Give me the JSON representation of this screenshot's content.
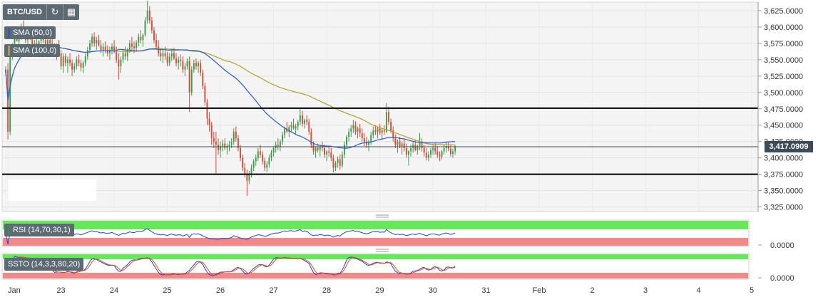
{
  "toolbar": {
    "symbol": "BTC/USD",
    "refresh_icon": "refresh-icon",
    "calendar_icon": "calendar-icon"
  },
  "indicators": {
    "sma50": {
      "label": "SMA (50,0)",
      "color": "#2a5cc9"
    },
    "sma100": {
      "label": "SMA (100,0)",
      "color": "#b0a02a"
    },
    "rsi": {
      "label": "RSI (14,70,30,1)",
      "value_label": "0.0000"
    },
    "ssto": {
      "label": "SSTO (14,3,3,80,20)",
      "value_label": "0.0000"
    }
  },
  "current_price": "3,417.0909",
  "colors": {
    "up": "#3e9b4b",
    "down": "#d64b3a",
    "panel_bg": "#f4f4f4",
    "green_zone": "#66e85a",
    "red_zone": "#f08a8a"
  },
  "chart_data": {
    "type": "candlestick",
    "yticks": [
      "3,625.0000",
      "3,600.0000",
      "3,575.0000",
      "3,550.0000",
      "3,525.0000",
      "3,500.0000",
      "3,475.0000",
      "3,450.0000",
      "3,425.0000",
      "3,400.0000",
      "3,375.0000",
      "3,350.0000",
      "3,325.0000"
    ],
    "ytick_values": [
      3625,
      3600,
      3575,
      3550,
      3525,
      3500,
      3475,
      3450,
      3425,
      3400,
      3375,
      3350,
      3325
    ],
    "ylim": [
      3318,
      3638
    ],
    "xticks": [
      "Jan",
      "23",
      "24",
      "25",
      "26",
      "27",
      "28",
      "29",
      "30",
      "31",
      "Feb",
      "2",
      "3",
      "4",
      "5"
    ],
    "horizontal_levels": [
      3476,
      3375
    ],
    "current_price_value": 3417.09,
    "candles_per_day": 24,
    "candles": [
      [
        3530,
        3540,
        3525,
        3535
      ],
      [
        3535,
        3545,
        3428,
        3440
      ],
      [
        3440,
        3560,
        3435,
        3555
      ],
      [
        3555,
        3575,
        3550,
        3570
      ],
      [
        3570,
        3590,
        3565,
        3585
      ],
      [
        3585,
        3600,
        3580,
        3578
      ],
      [
        3578,
        3590,
        3570,
        3585
      ],
      [
        3585,
        3605,
        3580,
        3600
      ],
      [
        3600,
        3610,
        3585,
        3590
      ],
      [
        3590,
        3600,
        3575,
        3580
      ],
      [
        3580,
        3595,
        3570,
        3590
      ],
      [
        3590,
        3600,
        3580,
        3585
      ],
      [
        3585,
        3590,
        3560,
        3565
      ],
      [
        3565,
        3580,
        3558,
        3575
      ],
      [
        3575,
        3585,
        3565,
        3570
      ],
      [
        3570,
        3580,
        3555,
        3578
      ],
      [
        3578,
        3595,
        3570,
        3590
      ],
      [
        3590,
        3600,
        3575,
        3580
      ],
      [
        3580,
        3588,
        3565,
        3570
      ],
      [
        3570,
        3585,
        3560,
        3580
      ],
      [
        3580,
        3592,
        3570,
        3575
      ],
      [
        3575,
        3582,
        3560,
        3565
      ],
      [
        3565,
        3575,
        3555,
        3560
      ],
      [
        3560,
        3575,
        3550,
        3570
      ],
      [
        3570,
        3580,
        3555,
        3560
      ],
      [
        3560,
        3565,
        3535,
        3540
      ],
      [
        3540,
        3560,
        3530,
        3555
      ],
      [
        3555,
        3560,
        3540,
        3545
      ],
      [
        3545,
        3555,
        3530,
        3550
      ],
      [
        3550,
        3560,
        3540,
        3545
      ],
      [
        3545,
        3550,
        3525,
        3535
      ],
      [
        3535,
        3545,
        3530,
        3540
      ],
      [
        3540,
        3555,
        3535,
        3550
      ],
      [
        3550,
        3558,
        3540,
        3545
      ],
      [
        3545,
        3550,
        3532,
        3538
      ],
      [
        3538,
        3548,
        3530,
        3545
      ],
      [
        3545,
        3560,
        3540,
        3555
      ],
      [
        3555,
        3570,
        3550,
        3565
      ],
      [
        3565,
        3580,
        3560,
        3575
      ],
      [
        3575,
        3590,
        3570,
        3585
      ],
      [
        3585,
        3592,
        3570,
        3575
      ],
      [
        3575,
        3585,
        3565,
        3580
      ],
      [
        3580,
        3588,
        3570,
        3572
      ],
      [
        3572,
        3580,
        3560,
        3565
      ],
      [
        3565,
        3575,
        3555,
        3570
      ],
      [
        3570,
        3578,
        3560,
        3565
      ],
      [
        3565,
        3572,
        3555,
        3560
      ],
      [
        3560,
        3570,
        3550,
        3565
      ],
      [
        3565,
        3575,
        3558,
        3570
      ],
      [
        3570,
        3580,
        3560,
        3562
      ],
      [
        3562,
        3570,
        3545,
        3550
      ],
      [
        3550,
        3560,
        3520,
        3540
      ],
      [
        3540,
        3555,
        3530,
        3550
      ],
      [
        3550,
        3565,
        3545,
        3560
      ],
      [
        3560,
        3570,
        3550,
        3555
      ],
      [
        3555,
        3568,
        3548,
        3565
      ],
      [
        3565,
        3580,
        3560,
        3575
      ],
      [
        3575,
        3585,
        3565,
        3570
      ],
      [
        3570,
        3578,
        3560,
        3568
      ],
      [
        3568,
        3580,
        3562,
        3576
      ],
      [
        3576,
        3590,
        3570,
        3585
      ],
      [
        3585,
        3595,
        3575,
        3580
      ],
      [
        3580,
        3590,
        3570,
        3588
      ],
      [
        3588,
        3615,
        3585,
        3610
      ],
      [
        3610,
        3640,
        3605,
        3625
      ],
      [
        3625,
        3632,
        3605,
        3610
      ],
      [
        3610,
        3615,
        3590,
        3595
      ],
      [
        3595,
        3600,
        3575,
        3580
      ],
      [
        3580,
        3590,
        3565,
        3570
      ],
      [
        3570,
        3580,
        3555,
        3560
      ],
      [
        3560,
        3568,
        3548,
        3555
      ],
      [
        3555,
        3565,
        3545,
        3560
      ],
      [
        3560,
        3570,
        3550,
        3555
      ],
      [
        3555,
        3562,
        3540,
        3545
      ],
      [
        3545,
        3560,
        3540,
        3555
      ],
      [
        3555,
        3565,
        3548,
        3560
      ],
      [
        3560,
        3568,
        3550,
        3552
      ],
      [
        3552,
        3560,
        3540,
        3545
      ],
      [
        3545,
        3555,
        3535,
        3550
      ],
      [
        3550,
        3558,
        3540,
        3548
      ],
      [
        3548,
        3555,
        3530,
        3535
      ],
      [
        3535,
        3545,
        3525,
        3540
      ],
      [
        3540,
        3552,
        3535,
        3548
      ],
      [
        3548,
        3555,
        3470,
        3500
      ],
      [
        3500,
        3540,
        3495,
        3535
      ],
      [
        3535,
        3550,
        3530,
        3545
      ],
      [
        3545,
        3552,
        3535,
        3540
      ],
      [
        3540,
        3548,
        3530,
        3545
      ],
      [
        3545,
        3550,
        3525,
        3530
      ],
      [
        3530,
        3535,
        3505,
        3510
      ],
      [
        3510,
        3515,
        3480,
        3485
      ],
      [
        3485,
        3490,
        3450,
        3460
      ],
      [
        3460,
        3470,
        3440,
        3450
      ],
      [
        3450,
        3455,
        3420,
        3430
      ],
      [
        3430,
        3440,
        3415,
        3425
      ],
      [
        3425,
        3440,
        3375,
        3420
      ],
      [
        3420,
        3430,
        3405,
        3412
      ],
      [
        3412,
        3425,
        3400,
        3418
      ],
      [
        3418,
        3428,
        3410,
        3422
      ],
      [
        3422,
        3430,
        3412,
        3415
      ],
      [
        3415,
        3422,
        3405,
        3418
      ],
      [
        3418,
        3426,
        3410,
        3420
      ],
      [
        3420,
        3430,
        3415,
        3425
      ],
      [
        3425,
        3445,
        3420,
        3440
      ],
      [
        3440,
        3448,
        3425,
        3430
      ],
      [
        3430,
        3435,
        3410,
        3415
      ],
      [
        3415,
        3420,
        3395,
        3400
      ],
      [
        3400,
        3405,
        3380,
        3385
      ],
      [
        3385,
        3392,
        3370,
        3375
      ],
      [
        3375,
        3382,
        3342,
        3365
      ],
      [
        3365,
        3380,
        3360,
        3375
      ],
      [
        3375,
        3390,
        3370,
        3385
      ],
      [
        3385,
        3398,
        3380,
        3395
      ],
      [
        3395,
        3405,
        3388,
        3400
      ],
      [
        3400,
        3415,
        3395,
        3410
      ],
      [
        3410,
        3420,
        3400,
        3405
      ],
      [
        3405,
        3410,
        3390,
        3395
      ],
      [
        3395,
        3400,
        3380,
        3385
      ],
      [
        3385,
        3395,
        3378,
        3390
      ],
      [
        3390,
        3405,
        3385,
        3400
      ],
      [
        3400,
        3412,
        3395,
        3408
      ],
      [
        3408,
        3418,
        3402,
        3415
      ],
      [
        3415,
        3425,
        3408,
        3420
      ],
      [
        3420,
        3430,
        3412,
        3418
      ],
      [
        3418,
        3428,
        3410,
        3425
      ],
      [
        3425,
        3440,
        3420,
        3435
      ],
      [
        3435,
        3448,
        3430,
        3445
      ],
      [
        3445,
        3455,
        3438,
        3440
      ],
      [
        3440,
        3450,
        3432,
        3447
      ],
      [
        3447,
        3455,
        3440,
        3450
      ],
      [
        3450,
        3460,
        3443,
        3445
      ],
      [
        3445,
        3452,
        3435,
        3448
      ],
      [
        3448,
        3458,
        3442,
        3455
      ],
      [
        3455,
        3475,
        3450,
        3465
      ],
      [
        3465,
        3472,
        3448,
        3452
      ],
      [
        3452,
        3460,
        3445,
        3458
      ],
      [
        3458,
        3465,
        3450,
        3455
      ],
      [
        3455,
        3460,
        3435,
        3440
      ],
      [
        3440,
        3445,
        3415,
        3420
      ],
      [
        3420,
        3425,
        3405,
        3410
      ],
      [
        3410,
        3418,
        3400,
        3415
      ],
      [
        3415,
        3422,
        3408,
        3412
      ],
      [
        3412,
        3420,
        3402,
        3418
      ],
      [
        3418,
        3425,
        3410,
        3415
      ],
      [
        3415,
        3420,
        3400,
        3405
      ],
      [
        3405,
        3412,
        3395,
        3410
      ],
      [
        3410,
        3418,
        3402,
        3408
      ],
      [
        3408,
        3415,
        3395,
        3400
      ],
      [
        3400,
        3405,
        3378,
        3385
      ],
      [
        3385,
        3395,
        3380,
        3392
      ],
      [
        3392,
        3402,
        3385,
        3398
      ],
      [
        3398,
        3405,
        3382,
        3388
      ],
      [
        3388,
        3410,
        3385,
        3405
      ],
      [
        3405,
        3425,
        3400,
        3420
      ],
      [
        3420,
        3435,
        3415,
        3432
      ],
      [
        3432,
        3445,
        3425,
        3440
      ],
      [
        3440,
        3450,
        3432,
        3445
      ],
      [
        3445,
        3458,
        3438,
        3450
      ],
      [
        3450,
        3456,
        3435,
        3440
      ],
      [
        3440,
        3448,
        3430,
        3445
      ],
      [
        3445,
        3452,
        3432,
        3438
      ],
      [
        3438,
        3445,
        3425,
        3430
      ],
      [
        3430,
        3438,
        3418,
        3425
      ],
      [
        3425,
        3432,
        3415,
        3420
      ],
      [
        3420,
        3428,
        3410,
        3425
      ],
      [
        3425,
        3440,
        3420,
        3435
      ],
      [
        3435,
        3448,
        3430,
        3442
      ],
      [
        3442,
        3450,
        3435,
        3440
      ],
      [
        3440,
        3448,
        3430,
        3445
      ],
      [
        3445,
        3452,
        3435,
        3438
      ],
      [
        3438,
        3446,
        3428,
        3442
      ],
      [
        3442,
        3450,
        3435,
        3440
      ],
      [
        3440,
        3484,
        3438,
        3470
      ],
      [
        3470,
        3478,
        3450,
        3455
      ],
      [
        3455,
        3460,
        3438,
        3442
      ],
      [
        3442,
        3448,
        3425,
        3430
      ],
      [
        3430,
        3436,
        3415,
        3420
      ],
      [
        3420,
        3428,
        3408,
        3425
      ],
      [
        3425,
        3432,
        3415,
        3418
      ],
      [
        3418,
        3425,
        3405,
        3422
      ],
      [
        3422,
        3430,
        3410,
        3415
      ],
      [
        3415,
        3422,
        3400,
        3405
      ],
      [
        3405,
        3412,
        3388,
        3410
      ],
      [
        3410,
        3420,
        3402,
        3415
      ],
      [
        3415,
        3425,
        3408,
        3420
      ],
      [
        3420,
        3428,
        3410,
        3412
      ],
      [
        3412,
        3420,
        3405,
        3418
      ],
      [
        3418,
        3438,
        3412,
        3425
      ],
      [
        3425,
        3430,
        3410,
        3415
      ],
      [
        3415,
        3420,
        3402,
        3408
      ],
      [
        3408,
        3415,
        3396,
        3400
      ],
      [
        3400,
        3410,
        3395,
        3405
      ],
      [
        3405,
        3415,
        3400,
        3412
      ],
      [
        3412,
        3420,
        3405,
        3415
      ],
      [
        3415,
        3422,
        3405,
        3410
      ],
      [
        3410,
        3418,
        3400,
        3405
      ],
      [
        3405,
        3410,
        3395,
        3402
      ],
      [
        3402,
        3412,
        3398,
        3410
      ],
      [
        3410,
        3420,
        3405,
        3415
      ],
      [
        3415,
        3425,
        3408,
        3418
      ],
      [
        3418,
        3424,
        3410,
        3414
      ],
      [
        3414,
        3420,
        3402,
        3406
      ],
      [
        3406,
        3414,
        3400,
        3410
      ],
      [
        3410,
        3420,
        3405,
        3417
      ]
    ]
  }
}
